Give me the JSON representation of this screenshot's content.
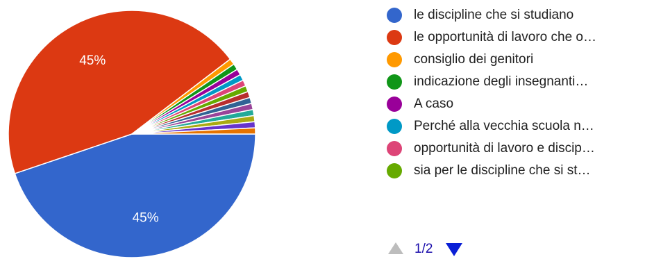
{
  "chart_data": {
    "type": "pie",
    "slices": [
      {
        "label": "le discipline che si studiano",
        "value": 45,
        "color": "#3366cc",
        "data_label": "45%"
      },
      {
        "label": "le opportunità di lavoro che o…",
        "value": 45,
        "color": "#dc3912",
        "data_label": "45%"
      },
      {
        "label": "consiglio dei genitori",
        "value": 0.8,
        "color": "#ff9900",
        "data_label": ""
      },
      {
        "label": "indicazione degli insegnanti…",
        "value": 0.8,
        "color": "#109618",
        "data_label": ""
      },
      {
        "label": "A caso",
        "value": 0.8,
        "color": "#990099",
        "data_label": ""
      },
      {
        "label": "Perché alla vecchia scuola n…",
        "value": 0.8,
        "color": "#0099c6",
        "data_label": ""
      },
      {
        "label": "opportunità di lavoro e discip…",
        "value": 0.8,
        "color": "#dd4477",
        "data_label": ""
      },
      {
        "label": "sia per le discipline che si st…",
        "value": 0.8,
        "color": "#66aa00",
        "data_label": ""
      },
      {
        "label": "",
        "value": 0.8,
        "color": "#b82e2e",
        "data_label": ""
      },
      {
        "label": "",
        "value": 0.8,
        "color": "#316395",
        "data_label": ""
      },
      {
        "label": "",
        "value": 0.8,
        "color": "#994499",
        "data_label": ""
      },
      {
        "label": "",
        "value": 0.8,
        "color": "#22aa99",
        "data_label": ""
      },
      {
        "label": "",
        "value": 0.8,
        "color": "#aaaa11",
        "data_label": ""
      },
      {
        "label": "",
        "value": 0.8,
        "color": "#6633cc",
        "data_label": ""
      },
      {
        "label": "",
        "value": 0.8,
        "color": "#e67300",
        "data_label": ""
      }
    ],
    "legend_position": "right"
  },
  "legend": {
    "items": [
      {
        "label": "le discipline che si studiano",
        "color": "#3366cc"
      },
      {
        "label": "le opportunità di lavoro che o…",
        "color": "#dc3912"
      },
      {
        "label": "consiglio dei genitori",
        "color": "#ff9900"
      },
      {
        "label": "indicazione degli insegnanti…",
        "color": "#109618"
      },
      {
        "label": "A caso",
        "color": "#990099"
      },
      {
        "label": "Perché alla vecchia scuola n…",
        "color": "#0099c6"
      },
      {
        "label": "opportunità di lavoro e discip…",
        "color": "#dd4477"
      },
      {
        "label": "sia per le discipline che si st…",
        "color": "#66aa00"
      }
    ]
  },
  "pager": {
    "text": "1/2",
    "prev_icon": "triangle-up-icon",
    "next_icon": "triangle-down-icon"
  }
}
